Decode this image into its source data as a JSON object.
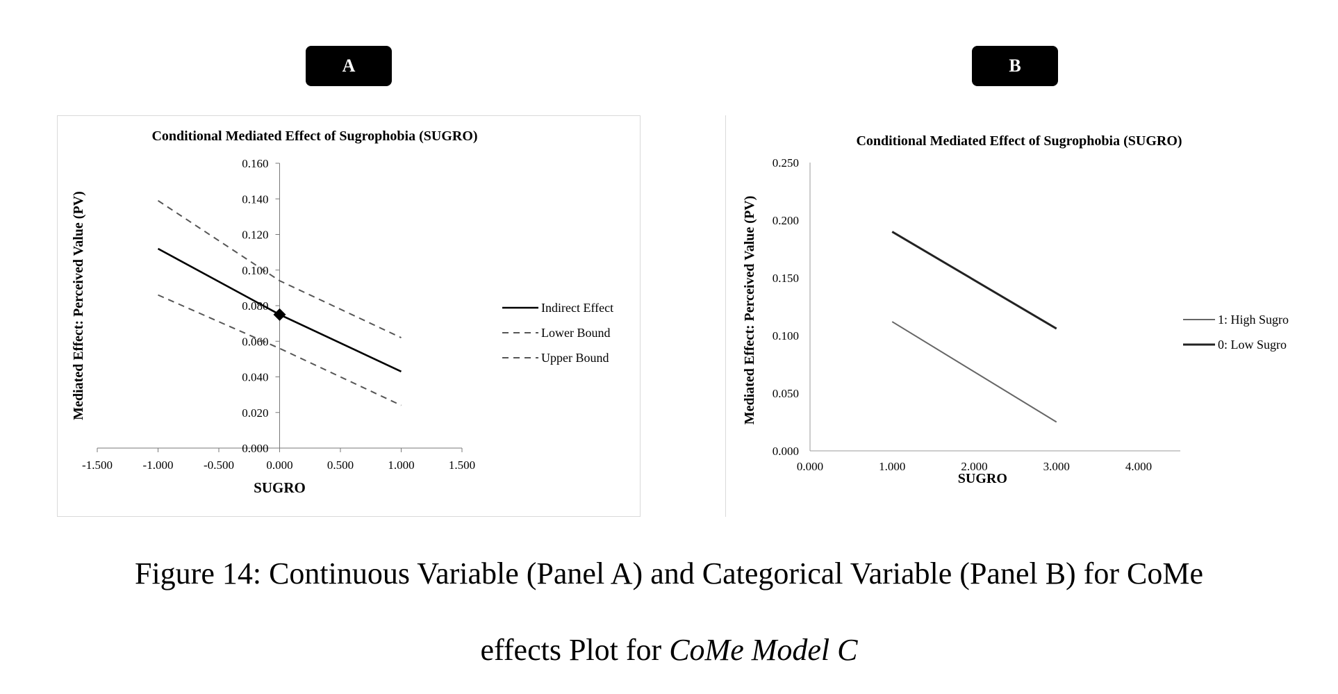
{
  "badges": {
    "a": "A",
    "b": "B"
  },
  "caption": {
    "line1": "Figure 14: Continuous Variable (Panel A) and Categorical Variable (Panel B) for CoMe",
    "line2_prefix": "effects Plot for ",
    "line2_italic": "CoMe Model C"
  },
  "chart_data": [
    {
      "type": "line",
      "title": "Conditional Mediated Effect of Sugrophobia (SUGRO)",
      "xlabel": "SUGRO",
      "ylabel": "Mediated Effect: Perceived Value (PV)",
      "xlim": [
        -1.5,
        1.5
      ],
      "ylim": [
        0.0,
        0.16
      ],
      "xticks": [
        "-1.500",
        "-1.000",
        "-0.500",
        "0.000",
        "0.500",
        "1.000",
        "1.500"
      ],
      "yticks": [
        "0.000",
        "0.020",
        "0.040",
        "0.060",
        "0.080",
        "0.100",
        "0.120",
        "0.140",
        "0.160"
      ],
      "legend_position": "right",
      "series": [
        {
          "name": "Indirect Effect",
          "style": "solid",
          "x": [
            -1.0,
            0.0,
            1.0
          ],
          "y": [
            0.112,
            0.075,
            0.043
          ]
        },
        {
          "name": "Lower Bound",
          "style": "dashed",
          "x": [
            -1.0,
            0.0,
            1.0
          ],
          "y": [
            0.086,
            0.056,
            0.024
          ]
        },
        {
          "name": "Upper Bound",
          "style": "dashed",
          "x": [
            -1.0,
            0.0,
            1.0
          ],
          "y": [
            0.139,
            0.094,
            0.062
          ]
        }
      ],
      "marker": {
        "x": 0.0,
        "y": 0.075
      }
    },
    {
      "type": "line",
      "title": "Conditional Mediated Effect of Sugrophobia (SUGRO)",
      "xlabel": "SUGRO",
      "ylabel": "Mediated Effect: Perceived Value (PV)",
      "xlim": [
        0.0,
        4.0
      ],
      "ylim": [
        0.0,
        0.25
      ],
      "xticks": [
        "0.000",
        "1.000",
        "2.000",
        "3.000",
        "4.000"
      ],
      "yticks": [
        "0.000",
        "0.050",
        "0.100",
        "0.150",
        "0.200",
        "0.250"
      ],
      "legend_position": "right",
      "series": [
        {
          "name": "1: High Sugro",
          "color": "#666666",
          "x": [
            1.0,
            3.0
          ],
          "y": [
            0.112,
            0.025
          ]
        },
        {
          "name": "0: Low Sugro",
          "color": "#222222",
          "x": [
            1.0,
            3.0
          ],
          "y": [
            0.19,
            0.106
          ]
        }
      ]
    }
  ]
}
